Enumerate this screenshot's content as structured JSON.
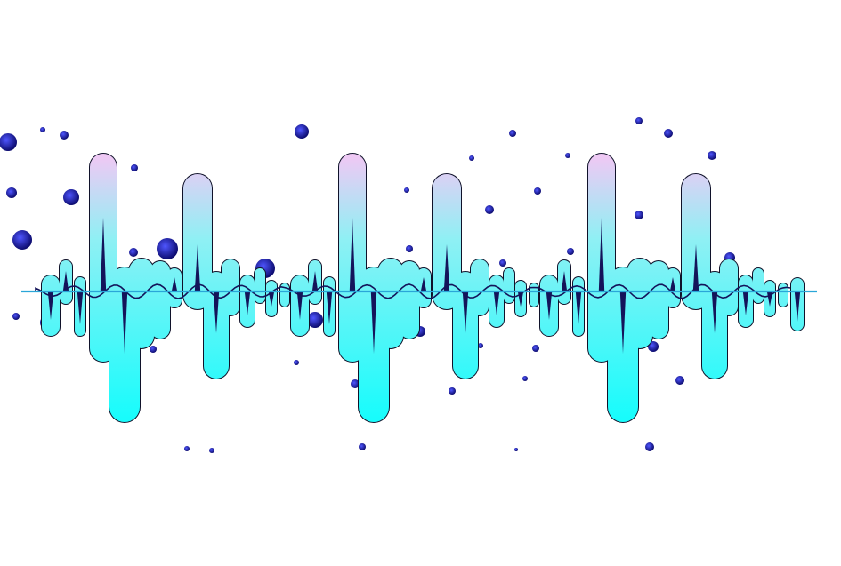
{
  "image": {
    "subject": "waveform",
    "background_color": "#ffffff",
    "colors": {
      "wave_top": "#f0c8f4",
      "wave_mid": "#8ff0f4",
      "wave_bottom": "#18fcfc",
      "wave_outline": "#10122a",
      "inner_line": "#14145a",
      "baseline": "#2aa6d8",
      "bubble_light": "#4f56ff",
      "bubble_dark": "#0c0b6e"
    }
  }
}
